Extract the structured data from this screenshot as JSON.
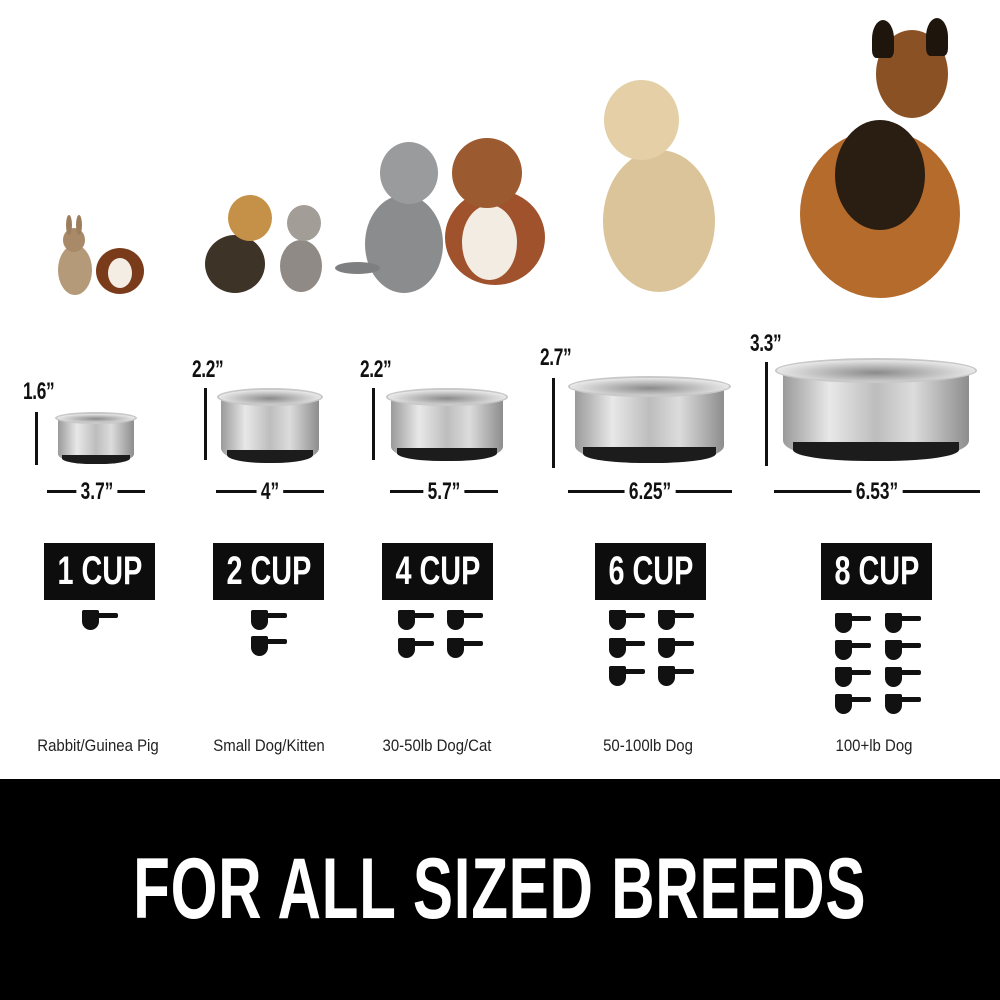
{
  "sizes": [
    {
      "height": "1.6”",
      "width": "3.7”",
      "capacity": "1 CUP",
      "cups": 1,
      "caption": "Rabbit/Guinea Pig"
    },
    {
      "height": "2.2”",
      "width": "4”",
      "capacity": "2 CUP",
      "cups": 2,
      "caption": "Small Dog/Kitten"
    },
    {
      "height": "2.2”",
      "width": "5.7”",
      "capacity": "4 CUP",
      "cups": 4,
      "caption": "30-50lb Dog/Cat"
    },
    {
      "height": "2.7”",
      "width": "6.25”",
      "capacity": "6 CUP",
      "cups": 6,
      "caption": "50-100lb Dog"
    },
    {
      "height": "3.3”",
      "width": "6.53”",
      "capacity": "8 CUP",
      "cups": 8,
      "caption": "100+lb Dog"
    }
  ],
  "banner": {
    "text": "FOR ALL SIZED BREEDS"
  },
  "colors": {
    "banner_bg": "#000000",
    "badge_bg": "#0d0d0d",
    "text": "#111111"
  }
}
